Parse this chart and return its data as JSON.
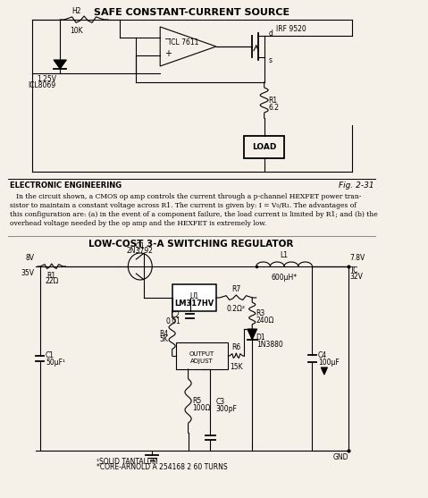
{
  "bg_color": "#f5f0e8",
  "title1": "SAFE CONSTANT-CURRENT SOURCE",
  "title2": "LOW-COST 3-A SWITCHING REGULATOR",
  "footer_left": "ELECTRONIC ENGINEERING",
  "footer_fig": "Fig. 2-31",
  "body_text": "   In the circuit shown, a CMOS op amp controls the current through a p-channel HEXFET power tran-\nsistor to maintain a constant voltage across R1. The current is given by: I = V₀/R₁. The advantages of\nthis configuration are: (a) in the event of a component failure, the load current is limited by R1; and (b) the\noverhead voltage needed by the op amp and the HEXFET is extremely low.",
  "footnote1": "¹SOLID TANTALUM",
  "footnote2": "*CORE-ARNOLD A 254168 2 60 TURNS"
}
